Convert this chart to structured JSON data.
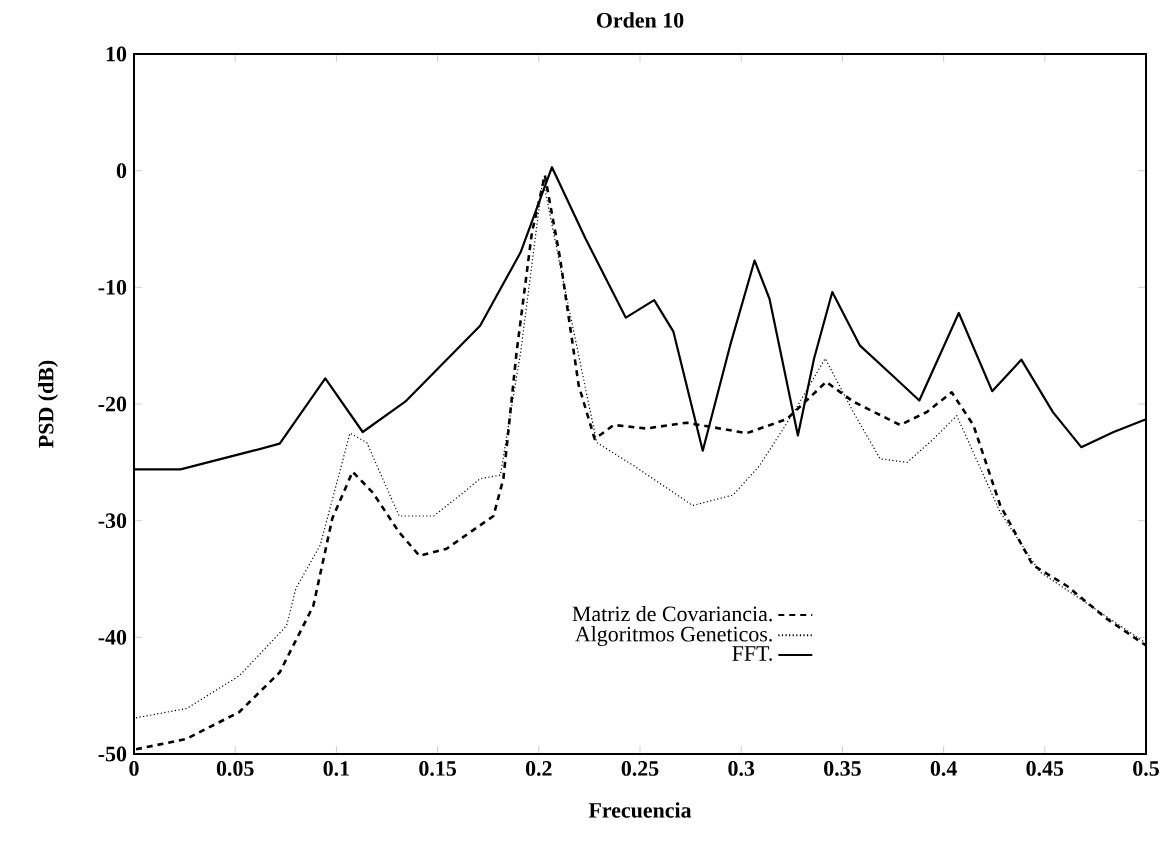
{
  "chart_data": {
    "type": "line",
    "title": "Orden 10",
    "xlabel": "Frecuencia",
    "ylabel": "PSD (dB)",
    "xlim": [
      0,
      0.5
    ],
    "ylim": [
      -50,
      10
    ],
    "xticks": [
      0,
      0.05,
      0.1,
      0.15,
      0.2,
      0.25,
      0.3,
      0.35,
      0.4,
      0.45,
      0.5
    ],
    "yticks": [
      -50,
      -40,
      -30,
      -20,
      -10,
      0,
      10
    ],
    "legend": "bottom",
    "grid": false,
    "marker": "none",
    "series": [
      {
        "name": "Matriz de Covariancia.",
        "color": "#000000",
        "line_style": "dashed",
        "x": [
          0.001,
          0.026,
          0.052,
          0.072,
          0.0886,
          0.098,
          0.108,
          0.118,
          0.131,
          0.141,
          0.1545,
          0.166,
          0.1776,
          0.1825,
          0.189,
          0.1966,
          0.203,
          0.2105,
          0.2197,
          0.2276,
          0.237,
          0.253,
          0.273,
          0.3027,
          0.3225,
          0.342,
          0.3554,
          0.3785,
          0.3916,
          0.404,
          0.4147,
          0.428,
          0.444,
          0.461,
          0.4805,
          0.5
        ],
        "values": [
          -49.6,
          -48.7,
          -46.4,
          -43.0,
          -37.3,
          -29.8,
          -25.8,
          -27.6,
          -31.0,
          -33.0,
          -32.4,
          -31.0,
          -29.6,
          -26.4,
          -15.6,
          -5.3,
          -0.4,
          -7.5,
          -18.4,
          -23.0,
          -21.8,
          -22.1,
          -21.6,
          -22.5,
          -21.3,
          -18.1,
          -19.8,
          -21.8,
          -20.7,
          -19.0,
          -21.8,
          -28.7,
          -33.8,
          -35.6,
          -38.4,
          -40.7
        ]
      },
      {
        "name": "Algoritmos Geneticos.",
        "color": "#000000",
        "line_style": "dotted",
        "x": [
          0.001,
          0.026,
          0.052,
          0.0754,
          0.08,
          0.092,
          0.1067,
          0.115,
          0.131,
          0.148,
          0.1627,
          0.171,
          0.181,
          0.191,
          0.202,
          0.2105,
          0.2286,
          0.247,
          0.276,
          0.296,
          0.309,
          0.326,
          0.3415,
          0.3554,
          0.3686,
          0.382,
          0.395,
          0.4065,
          0.428,
          0.4476,
          0.47,
          0.5
        ],
        "values": [
          -46.9,
          -46.1,
          -43.3,
          -39.0,
          -35.8,
          -32.1,
          -22.5,
          -23.3,
          -29.6,
          -29.6,
          -27.6,
          -26.4,
          -26.1,
          -15.6,
          -0.7,
          -8.1,
          -23.3,
          -25.3,
          -28.7,
          -27.8,
          -25.3,
          -20.7,
          -16.1,
          -20.7,
          -24.7,
          -25.0,
          -23.0,
          -21.0,
          -29.3,
          -34.4,
          -37.0,
          -40.5
        ]
      },
      {
        "name": "FFT.",
        "color": "#000000",
        "line_style": "solid",
        "x": [
          0,
          0.023,
          0.059,
          0.072,
          0.0945,
          0.113,
          0.134,
          0.171,
          0.191,
          0.2065,
          0.223,
          0.243,
          0.257,
          0.2665,
          0.281,
          0.2945,
          0.3066,
          0.314,
          0.328,
          0.336,
          0.345,
          0.3587,
          0.375,
          0.388,
          0.4075,
          0.424,
          0.4384,
          0.454,
          0.468,
          0.484,
          0.5
        ],
        "values": [
          -25.6,
          -25.6,
          -24.0,
          -23.4,
          -17.8,
          -22.4,
          -19.8,
          -13.3,
          -7.0,
          0.3,
          -5.8,
          -12.6,
          -11.1,
          -13.8,
          -24.0,
          -15.0,
          -7.7,
          -11.0,
          -22.7,
          -16.1,
          -10.4,
          -15.0,
          -17.6,
          -19.7,
          -12.2,
          -18.9,
          -16.2,
          -20.7,
          -23.7,
          -22.4,
          -21.3
        ]
      }
    ]
  }
}
